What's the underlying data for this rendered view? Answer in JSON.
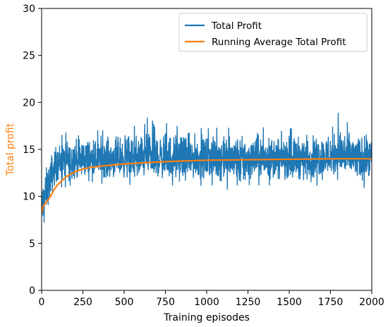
{
  "chart_data": {
    "type": "line",
    "xlabel": "Training episodes",
    "ylabel": "Total profit",
    "ylabel_color": "#ff7f0e",
    "xlim": [
      0,
      2000
    ],
    "ylim": [
      0,
      30
    ],
    "xticks": [
      0,
      250,
      500,
      750,
      1000,
      1250,
      1500,
      1750,
      2000
    ],
    "yticks": [
      0,
      5,
      10,
      15,
      20,
      25,
      30
    ],
    "grid": false,
    "legend_position": "top-right",
    "series": [
      {
        "name": "Total Profit",
        "color": "#1f77b4",
        "x": [
          0,
          10,
          20,
          30,
          40,
          50,
          60,
          70,
          80,
          90,
          100,
          125,
          150,
          175,
          200,
          250,
          300,
          350,
          400,
          450,
          500,
          600,
          640,
          700,
          800,
          900,
          1000,
          1100,
          1200,
          1300,
          1400,
          1500,
          1600,
          1700,
          1800,
          1900,
          2000
        ],
        "y": [
          8,
          9,
          10,
          10.5,
          11,
          11.5,
          12,
          12.5,
          13,
          13.2,
          13.5,
          13.6,
          13.7,
          13.8,
          13.8,
          13.9,
          13.9,
          14,
          14,
          14,
          14,
          14,
          14.5,
          14,
          14,
          14,
          14,
          14,
          14,
          14,
          14,
          14,
          14,
          14,
          14.5,
          14,
          14
        ],
        "noise_low": [
          6.3,
          7,
          7.5,
          8,
          8.5,
          9,
          9.5,
          10,
          10.5,
          10.8,
          11,
          11,
          11,
          11.2,
          11.2,
          11.3,
          11.3,
          11.4,
          11.3,
          11.3,
          11.3,
          11.2,
          11.2,
          11.2,
          11.2,
          11.1,
          11.2,
          11.2,
          9.4,
          11.2,
          11.2,
          11.2,
          11.1,
          11.2,
          11.2,
          10.6,
          11.2
        ],
        "noise_high": [
          12.5,
          13,
          13.5,
          14,
          14.5,
          15,
          15.5,
          15.8,
          16,
          16.2,
          16.4,
          16.5,
          16.8,
          16.8,
          17,
          17,
          17,
          17,
          17,
          17,
          17.4,
          17.5,
          19.9,
          18.1,
          17.5,
          17.3,
          17.2,
          17.3,
          17.2,
          17.4,
          17.2,
          17.2,
          17.2,
          17.3,
          18.9,
          17.3,
          17
        ]
      },
      {
        "name": "Running Average Total Profit",
        "color": "#ff7f0e",
        "x": [
          0,
          10,
          25,
          50,
          75,
          100,
          150,
          200,
          250,
          300,
          400,
          500,
          600,
          750,
          1000,
          1250,
          1500,
          1750,
          2000
        ],
        "y": [
          8.2,
          9.0,
          9.3,
          9.9,
          10.7,
          11.3,
          12.1,
          12.6,
          12.9,
          13.1,
          13.3,
          13.45,
          13.55,
          13.7,
          13.85,
          13.9,
          13.95,
          14.0,
          14.0
        ]
      }
    ]
  }
}
